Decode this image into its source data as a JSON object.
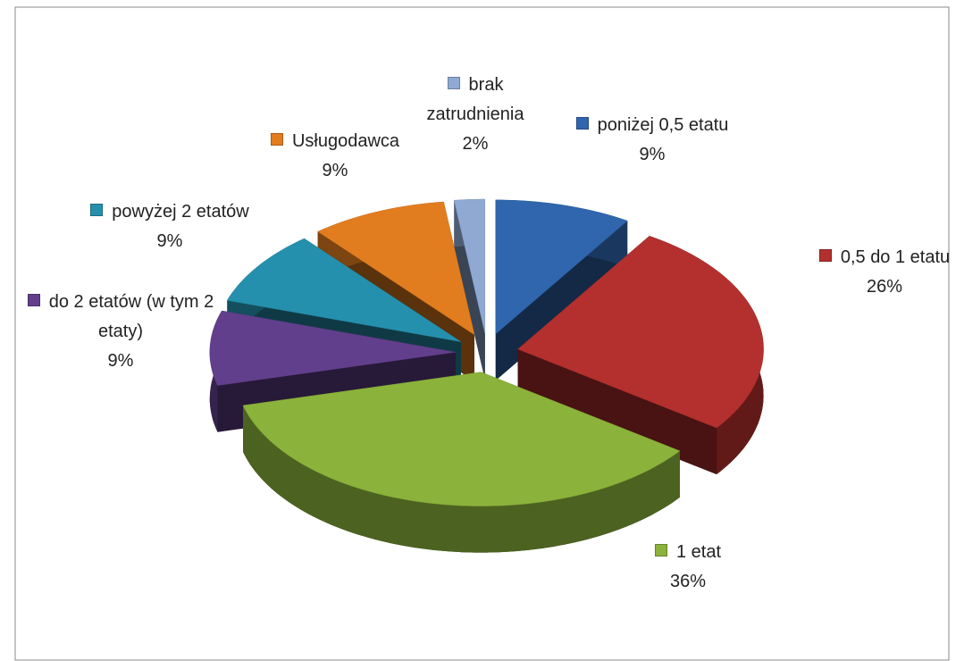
{
  "chart_data": {
    "type": "pie",
    "categories": [
      "poniżej 0,5 etatu",
      "0,5 do 1 etatu",
      "1 etat",
      "do 2 etatów (w tym 2 etaty)",
      "powyżej 2 etatów",
      "Usługodawca",
      "brak zatrudnienia"
    ],
    "values": [
      9,
      26,
      36,
      9,
      9,
      9,
      2
    ],
    "value_labels": [
      "9%",
      "26%",
      "36%",
      "9%",
      "9%",
      "9%",
      "2%"
    ],
    "colors": [
      "#2f66ad",
      "#b3302e",
      "#8bb23b",
      "#623f8c",
      "#2590ad",
      "#e27d1f",
      "#8fa9d3"
    ]
  }
}
